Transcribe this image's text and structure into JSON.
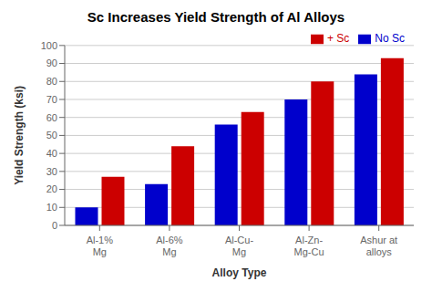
{
  "chart_data": {
    "type": "bar",
    "title": "Sc Increases Yield Strength of Al Alloys",
    "xlabel": "Alloy Type",
    "ylabel": "Yield Strength (ksi)",
    "categories": [
      "Al-1%\nMg",
      "Al-6%\nMg",
      "Al-Cu-\nMg",
      "Al-Zn-\nMg-Cu",
      "Ashur at\nalloys"
    ],
    "series": [
      {
        "name": "No Sc",
        "color": "#0000CC",
        "values": [
          10,
          23,
          56,
          70,
          84
        ]
      },
      {
        "name": "+ Sc",
        "color": "#CC0000",
        "values": [
          27,
          44,
          63,
          80,
          93
        ]
      }
    ],
    "ylim": [
      0,
      100
    ],
    "yticks": [
      0,
      10,
      20,
      30,
      40,
      50,
      60,
      70,
      80,
      90,
      100
    ],
    "grid": true,
    "legend": "upper right"
  }
}
